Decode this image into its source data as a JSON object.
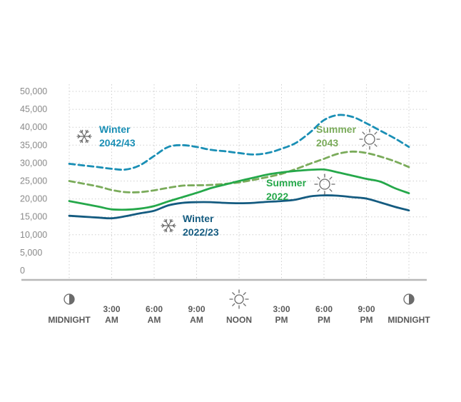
{
  "chart_data": {
    "type": "line",
    "title": "",
    "xlabel": "",
    "ylabel": "",
    "ylim": [
      0,
      50000
    ],
    "yticks": [
      "50,000",
      "45,000",
      "40,000",
      "35,000",
      "30,000",
      "25,000",
      "20,000",
      "15,000",
      "10,000",
      "5,000",
      "0"
    ],
    "x_ticks": [
      {
        "label": [
          "MIDNIGHT"
        ],
        "hour": 0,
        "icon": "moon"
      },
      {
        "label": [
          "3:00",
          "AM"
        ],
        "hour": 3,
        "icon": ""
      },
      {
        "label": [
          "6:00",
          "AM"
        ],
        "hour": 6,
        "icon": ""
      },
      {
        "label": [
          "9:00",
          "AM"
        ],
        "hour": 9,
        "icon": ""
      },
      {
        "label": [
          "NOON"
        ],
        "hour": 12,
        "icon": "sun"
      },
      {
        "label": [
          "3:00",
          "PM"
        ],
        "hour": 15,
        "icon": ""
      },
      {
        "label": [
          "6:00",
          "PM"
        ],
        "hour": 18,
        "icon": ""
      },
      {
        "label": [
          "9:00",
          "PM"
        ],
        "hour": 21,
        "icon": ""
      },
      {
        "label": [
          "MIDNIGHT"
        ],
        "hour": 24,
        "icon": "moon"
      }
    ],
    "series": [
      {
        "name": "Winter 2042/43",
        "label_lines": [
          "Winter",
          "2042/43"
        ],
        "color": "#1a8fb5",
        "dash": "dashed",
        "icon": "snowflake",
        "x": [
          0,
          2,
          3,
          4,
          5,
          6,
          7,
          8,
          9,
          10,
          11,
          12,
          13,
          14,
          15,
          16,
          17,
          18,
          19,
          20,
          21,
          22,
          23,
          24
        ],
        "values": [
          29800,
          28900,
          28400,
          28200,
          29400,
          32000,
          34500,
          35000,
          34500,
          33700,
          33300,
          32800,
          32400,
          32800,
          34000,
          35600,
          38500,
          42000,
          43400,
          42900,
          41100,
          39000,
          36900,
          34500
        ]
      },
      {
        "name": "Summer 2043",
        "label_lines": [
          "Summer",
          "2043"
        ],
        "color": "#7aab5a",
        "dash": "dashed",
        "icon": "sun",
        "x": [
          0,
          2,
          3,
          4,
          5,
          6,
          7,
          8,
          9,
          10,
          11,
          12,
          13,
          14,
          15,
          16,
          17,
          18,
          19,
          20,
          21,
          22,
          23,
          24
        ],
        "values": [
          25000,
          23500,
          22500,
          21900,
          21900,
          22400,
          23100,
          23700,
          23800,
          23900,
          24200,
          24600,
          25300,
          26100,
          27000,
          28300,
          29800,
          31200,
          32600,
          33200,
          32800,
          31800,
          30500,
          28900
        ]
      },
      {
        "name": "Summer 2022",
        "label_lines": [
          "Summer",
          "2022"
        ],
        "color": "#25a84a",
        "dash": "solid",
        "icon": "sun",
        "x": [
          0,
          2,
          3,
          4,
          5,
          6,
          7,
          8,
          9,
          10,
          11,
          12,
          13,
          14,
          15,
          16,
          17,
          18,
          19,
          20,
          21,
          22,
          23,
          24
        ],
        "values": [
          19400,
          17900,
          17100,
          17000,
          17300,
          18000,
          19300,
          20500,
          21700,
          23000,
          24000,
          25000,
          25900,
          26800,
          27400,
          27800,
          28100,
          28200,
          27400,
          26500,
          25600,
          24800,
          23000,
          21600
        ]
      },
      {
        "name": "Winter 2022/23",
        "label_lines": [
          "Winter",
          "2022/23"
        ],
        "color": "#145b80",
        "dash": "solid",
        "icon": "snowflake",
        "x": [
          0,
          2,
          3,
          4,
          5,
          6,
          7,
          8,
          9,
          10,
          11,
          12,
          13,
          14,
          15,
          16,
          17,
          18,
          19,
          20,
          21,
          22,
          23,
          24
        ],
        "values": [
          15300,
          14800,
          14600,
          15200,
          16000,
          16700,
          18200,
          18900,
          19100,
          19100,
          18900,
          18800,
          18900,
          19200,
          19400,
          19800,
          20700,
          21000,
          20900,
          20500,
          20100,
          19000,
          17800,
          16800
        ]
      }
    ]
  }
}
